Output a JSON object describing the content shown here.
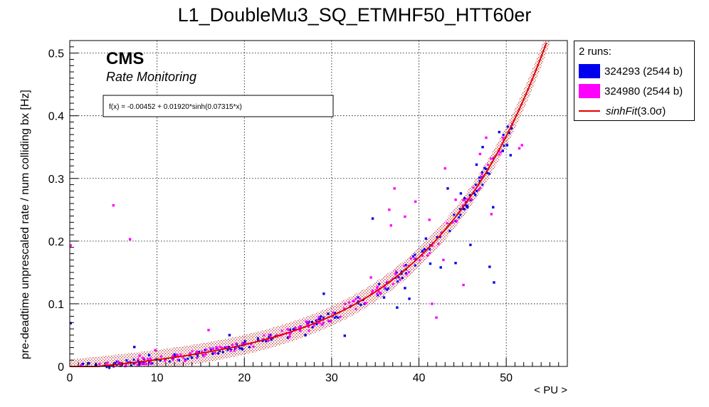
{
  "chart_data": {
    "type": "scatter",
    "title": "L1_DoubleMu3_SQ_ETMHF50_HTT60er",
    "xlabel": "< PU >",
    "ylabel": "pre-deadtime unprescaled rate / num colliding bx [Hz]",
    "xlim": [
      0,
      57
    ],
    "ylim": [
      0,
      0.52
    ],
    "x_ticks": [
      0,
      10,
      20,
      30,
      40,
      50
    ],
    "y_ticks": [
      0,
      0.1,
      0.2,
      0.3,
      0.4,
      0.5
    ],
    "x_tick_labels": [
      "0",
      "10",
      "20",
      "30",
      "40",
      "50"
    ],
    "y_tick_labels": [
      "0",
      "0.1",
      "0.2",
      "0.3",
      "0.4",
      "0.5"
    ],
    "grid": true,
    "legend_position": "right",
    "legend_header": "2 runs:",
    "branding": {
      "title": "CMS",
      "subtitle": "Rate Monitoring"
    },
    "fit": {
      "label": "sinhFit(3.0σ)",
      "label_plain": "sinhFit",
      "label_arg": "(3.0σ)",
      "formula_text": "f(x) = -0.00452 + 0.01920*sinh(0.07315*x)",
      "params": {
        "a": -0.00452,
        "b": 0.0192,
        "c": 0.07315
      },
      "band_sigma": 0.0157,
      "x_range": [
        0,
        55
      ],
      "color": "#e00000"
    },
    "series": [
      {
        "name": "324293 (2544 b)",
        "color": "#0000ee",
        "scatter": [
          [
            0.1,
            0.069
          ],
          [
            1.5,
            0.004
          ],
          [
            2.2,
            0.005
          ],
          [
            3.0,
            0.003
          ],
          [
            7.4,
            0.031
          ],
          [
            8.0,
            0.007
          ],
          [
            9.1,
            0.018
          ],
          [
            12.0,
            0.019
          ],
          [
            12.5,
            0.01
          ],
          [
            14.0,
            0.014
          ],
          [
            14.5,
            0.02
          ],
          [
            18.3,
            0.05
          ],
          [
            22.1,
            0.041
          ],
          [
            25.0,
            0.046
          ],
          [
            27.0,
            0.05
          ],
          [
            29.1,
            0.116
          ],
          [
            29.6,
            0.084
          ],
          [
            31.5,
            0.049
          ],
          [
            34.7,
            0.236
          ],
          [
            36.0,
            0.11
          ],
          [
            37.5,
            0.094
          ],
          [
            38.4,
            0.125
          ],
          [
            38.9,
            0.108
          ],
          [
            40.8,
            0.204
          ],
          [
            41.3,
            0.164
          ],
          [
            42.5,
            0.158
          ],
          [
            43.3,
            0.284
          ],
          [
            44.2,
            0.165
          ],
          [
            44.8,
            0.276
          ],
          [
            45.9,
            0.194
          ],
          [
            46.6,
            0.322
          ],
          [
            47.3,
            0.35
          ],
          [
            48.1,
            0.159
          ],
          [
            48.6,
            0.134
          ],
          [
            48.5,
            0.254
          ],
          [
            49.2,
            0.374
          ],
          [
            49.6,
            0.344
          ],
          [
            50.1,
            0.353
          ],
          [
            50.6,
            0.38
          ],
          [
            50.5,
            0.337
          ]
        ],
        "band_points": 170
      },
      {
        "name": "324980 (2544 b)",
        "color": "#ff00ff",
        "scatter": [
          [
            0.1,
            0.193
          ],
          [
            1.3,
            0.002
          ],
          [
            3.4,
            0.004
          ],
          [
            4.2,
            0.005
          ],
          [
            5.0,
            0.257
          ],
          [
            6.9,
            0.203
          ],
          [
            8.0,
            0.017
          ],
          [
            8.4,
            0.013
          ],
          [
            9.8,
            0.026
          ],
          [
            13.2,
            0.009
          ],
          [
            15.9,
            0.058
          ],
          [
            18.0,
            0.031
          ],
          [
            22.1,
            0.043
          ],
          [
            24.2,
            0.05
          ],
          [
            26.4,
            0.057
          ],
          [
            28.6,
            0.07
          ],
          [
            34.5,
            0.142
          ],
          [
            36.6,
            0.25
          ],
          [
            36.8,
            0.225
          ],
          [
            37.2,
            0.284
          ],
          [
            38.4,
            0.239
          ],
          [
            39.6,
            0.263
          ],
          [
            41.2,
            0.234
          ],
          [
            41.5,
            0.1
          ],
          [
            42.0,
            0.078
          ],
          [
            42.8,
            0.17
          ],
          [
            43.0,
            0.316
          ],
          [
            44.2,
            0.266
          ],
          [
            45.1,
            0.13
          ],
          [
            47.0,
            0.339
          ],
          [
            47.7,
            0.365
          ],
          [
            48.3,
            0.243
          ],
          [
            50.7,
            0.387
          ],
          [
            51.5,
            0.348
          ],
          [
            51.8,
            0.353
          ]
        ],
        "band_points": 170
      }
    ]
  }
}
